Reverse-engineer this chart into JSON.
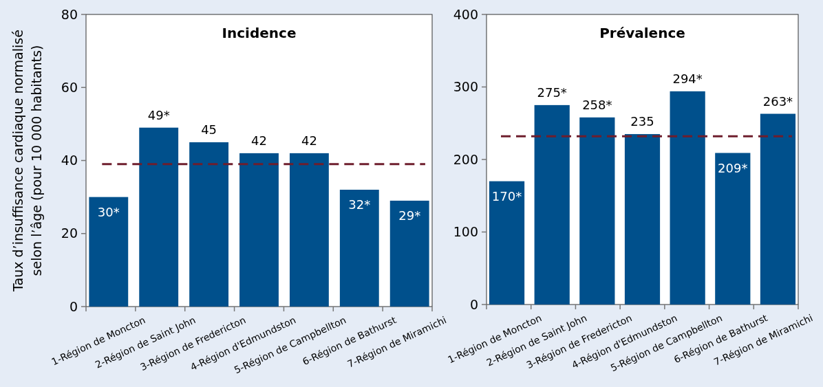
{
  "chart_data": [
    {
      "type": "bar",
      "title": "Incidence",
      "ylabel": "Taux d’insuffisance cardiaque normalisé\nselon l’âge (pour 10 000 habitants)",
      "categories": [
        "1-Région de Moncton",
        "2-Région de Saint John",
        "3-Région de Fredericton",
        "4-Région d'Edmundston",
        "5-Région de Campbellton",
        "6-Région de Bathurst",
        "7-Région de Miramichi"
      ],
      "values": [
        30,
        49,
        45,
        42,
        42,
        32,
        29
      ],
      "color": "#00508c",
      "value_labels": [
        "30*",
        "49*",
        "45",
        "42",
        "42",
        "32*",
        "29*"
      ],
      "ylim": [
        0,
        80
      ],
      "yticks": [
        0,
        20,
        40,
        60,
        80
      ],
      "ref_lines": [
        {
          "axis": "y",
          "value": 39,
          "color": "#6e1e2d",
          "line_style": "dashed"
        }
      ]
    },
    {
      "type": "bar",
      "title": "Prévalence",
      "categories": [
        "1-Région de Moncton",
        "2-Région de Saint John",
        "3-Région de Fredericton",
        "4-Région d'Edmundston",
        "5-Région de Campbellton",
        "6-Région de Bathurst",
        "7-Région de Miramichi"
      ],
      "values": [
        170,
        275,
        258,
        235,
        294,
        209,
        263
      ],
      "color": "#00508c",
      "value_labels": [
        "170*",
        "275*",
        "258*",
        "235",
        "294*",
        "209*",
        "263*"
      ],
      "ylim": [
        0,
        400
      ],
      "yticks": [
        0,
        100,
        200,
        300,
        400
      ],
      "ref_lines": [
        {
          "axis": "y",
          "value": 232,
          "color": "#6e1e2d",
          "line_style": "dashed"
        }
      ]
    }
  ]
}
